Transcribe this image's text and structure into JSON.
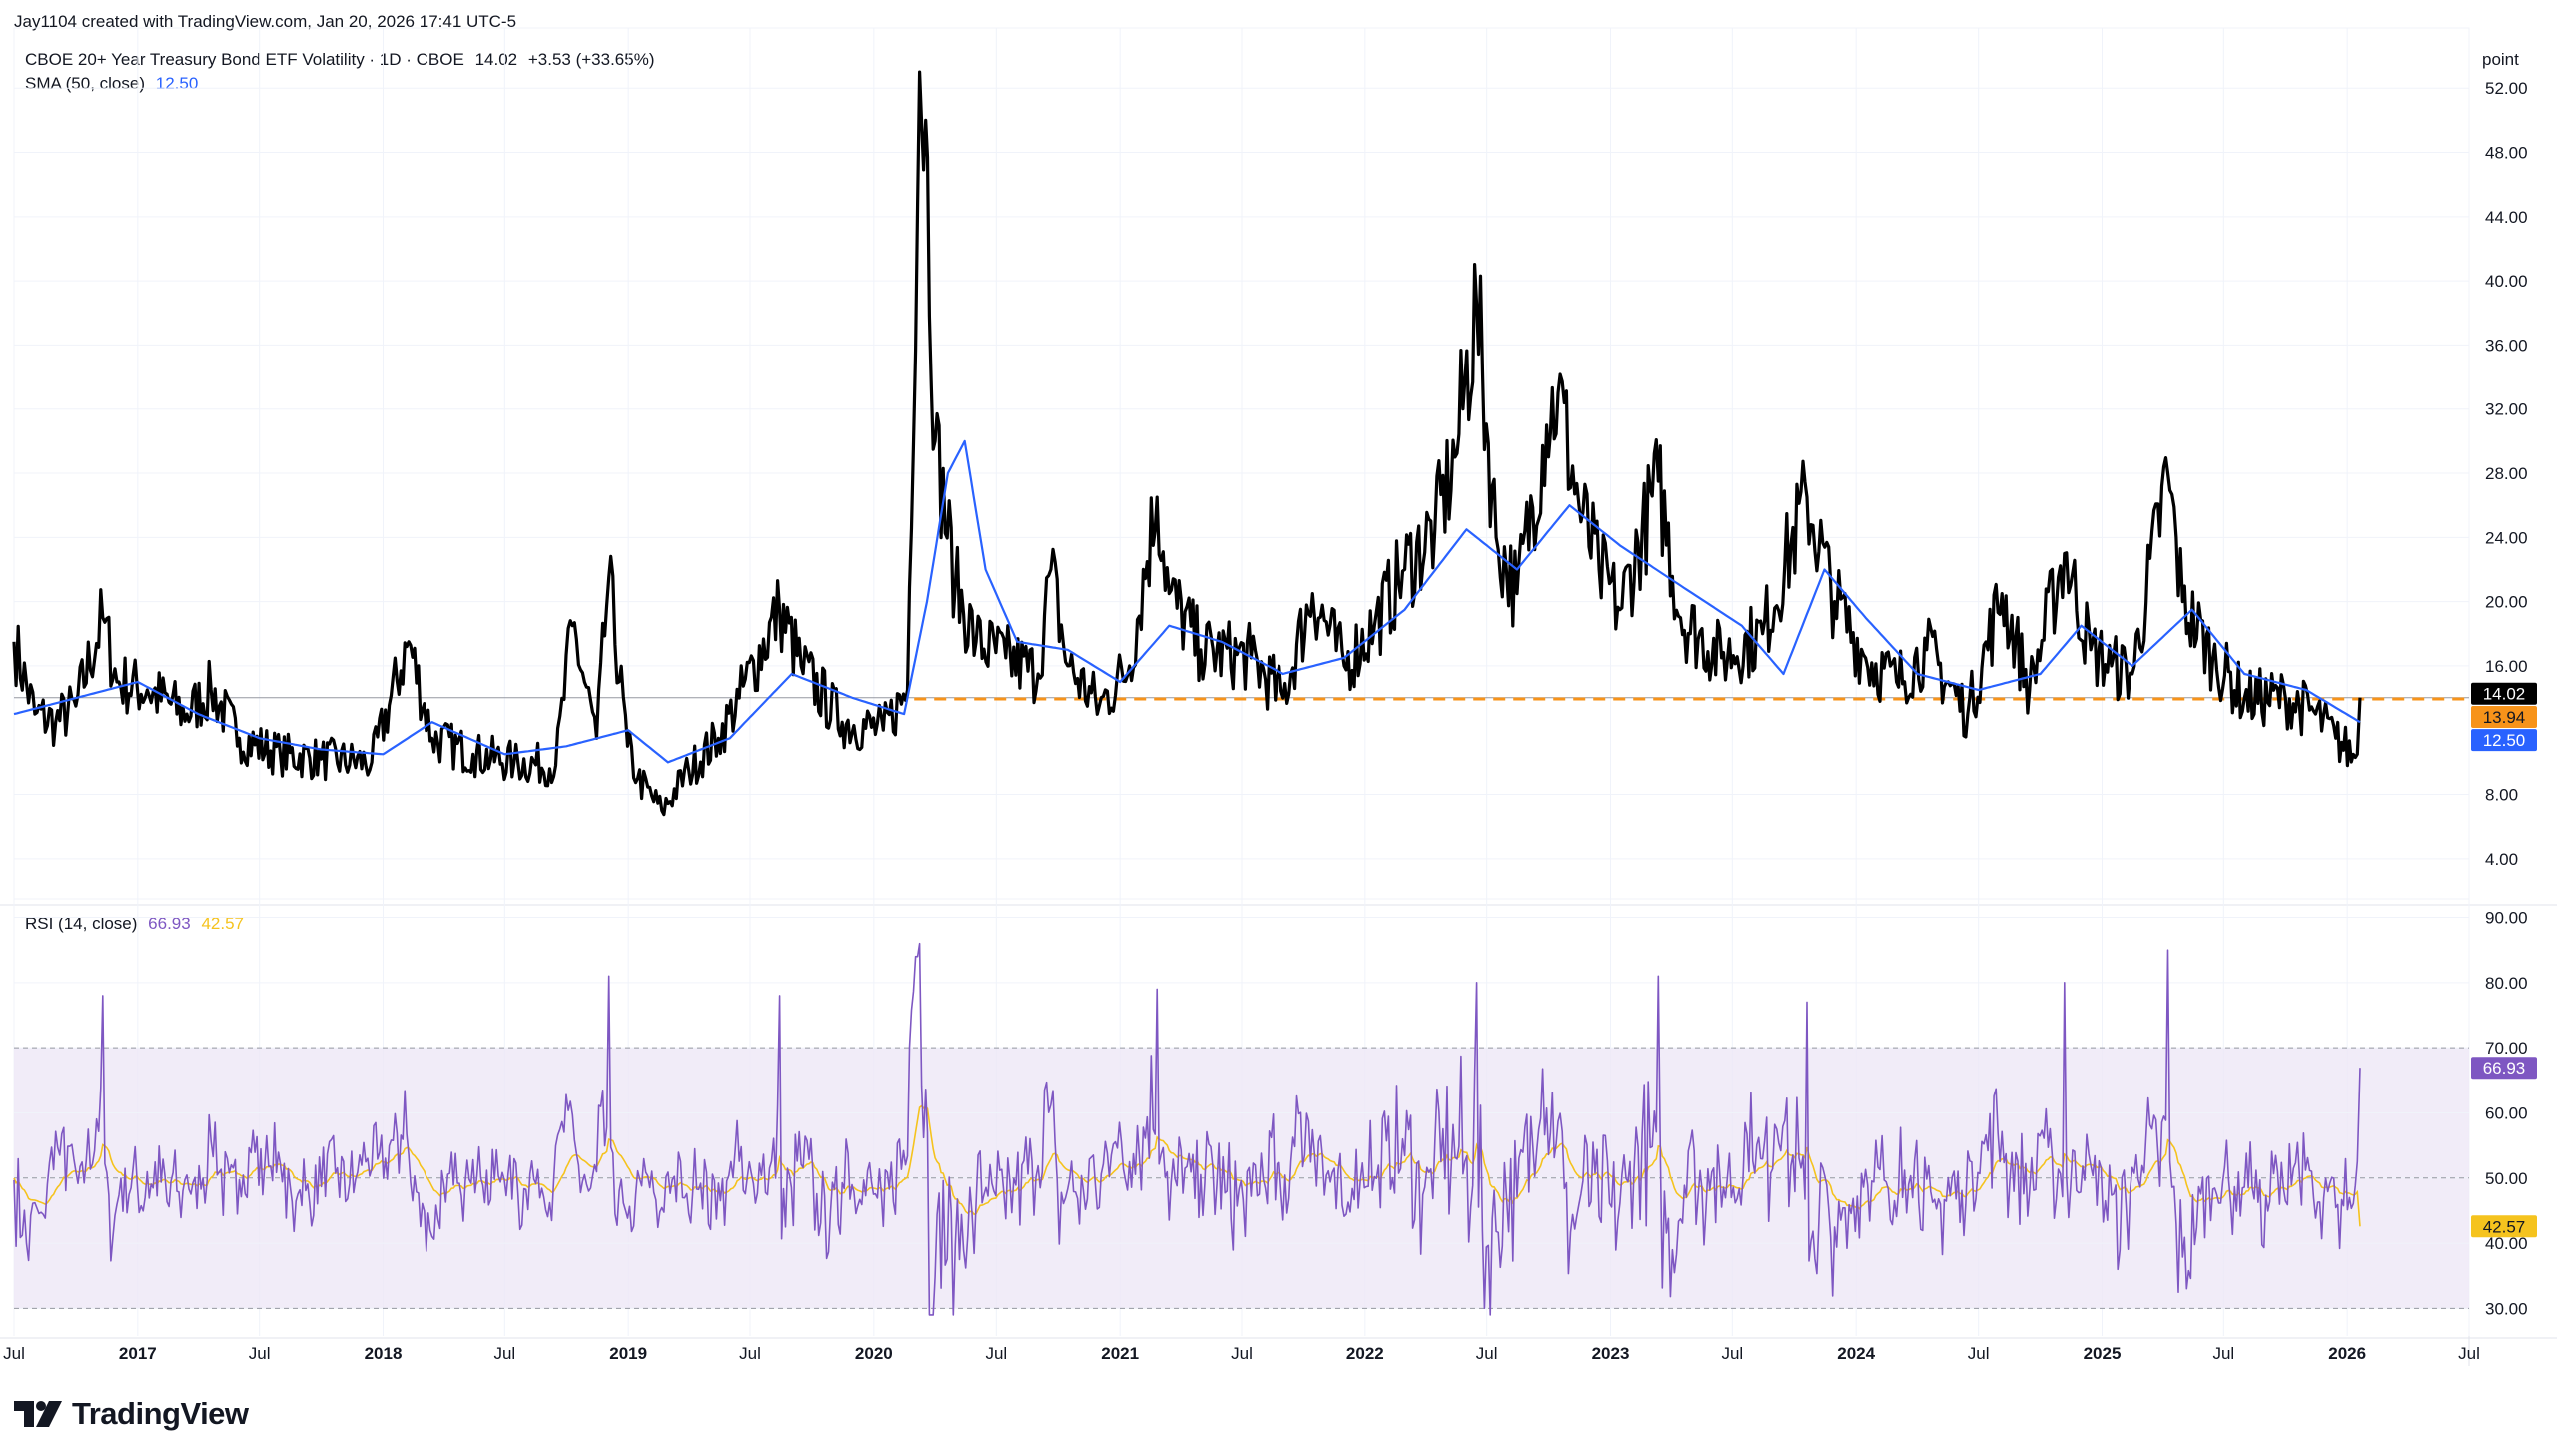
{
  "header": {
    "created_by": "Jay1104 created with TradingView.com, Jan 20, 2026 17:41 UTC-5",
    "symbol_line": "CBOE 20+ Year Treasury Bond ETF Volatility · 1D · CBOE",
    "last": "14.02",
    "change": "+3.53 (+33.65%)",
    "sma_label": "SMA (50, close)",
    "sma_value": "12.50",
    "rsi_label": "RSI (14, close)",
    "rsi_value": "66.93",
    "rsi_ma_value": "42.57",
    "unit_label": "point"
  },
  "brand": {
    "logo_text": "TradingView"
  },
  "colors": {
    "price": "#000000",
    "sma": "#2962ff",
    "rsi": "#7e57c2",
    "rsi_ma": "#f5c31e",
    "rsi_band": "#ede7f6",
    "ref_line": "#f7931a",
    "last_badge": "#000000",
    "ref_badge": "#f7931a",
    "sma_badge": "#2962ff",
    "rsi_badge": "#7e57c2",
    "rsi_ma_badge": "#f5c31e"
  },
  "chart_data": [
    {
      "type": "line",
      "title": "CBOE 20+ Year Treasury Bond ETF Volatility · 1D · CBOE",
      "ylabel": "point",
      "y_ticks": [
        4,
        8,
        16,
        20,
        24,
        28,
        32,
        36,
        40,
        44,
        48,
        52
      ],
      "ylim": [
        1.5,
        55
      ],
      "x_ticks": [
        "Jul",
        "2017",
        "Jul",
        "2018",
        "Jul",
        "2019",
        "Jul",
        "2020",
        "Jul",
        "2021",
        "Jul",
        "2022",
        "Jul",
        "2023",
        "Jul",
        "2024",
        "Jul",
        "2025",
        "Jul",
        "2026",
        "Jul"
      ],
      "series": [
        {
          "name": "CBOE 20+ Year Treasury Bond ETF Volatility",
          "points": [
            [
              "2016-07-01",
              17.5
            ],
            [
              "2016-08-01",
              13.0
            ],
            [
              "2016-09-01",
              12.5
            ],
            [
              "2016-10-01",
              13.5
            ],
            [
              "2016-11-10",
              19.0
            ],
            [
              "2016-12-01",
              15.0
            ],
            [
              "2017-01-15",
              14.5
            ],
            [
              "2017-03-15",
              13.0
            ],
            [
              "2017-04-20",
              14.5
            ],
            [
              "2017-06-01",
              11.5
            ],
            [
              "2017-08-01",
              10.5
            ],
            [
              "2017-10-01",
              10.2
            ],
            [
              "2017-12-15",
              10.0
            ],
            [
              "2018-02-08",
              17.5
            ],
            [
              "2018-03-15",
              11.5
            ],
            [
              "2018-05-15",
              10.5
            ],
            [
              "2018-07-15",
              10.0
            ],
            [
              "2018-09-15",
              9.8
            ],
            [
              "2018-10-10",
              18.5
            ],
            [
              "2018-11-15",
              11.5
            ],
            [
              "2018-12-03",
              21.5
            ],
            [
              "2018-12-31",
              11.0
            ],
            [
              "2019-01-15",
              9.0
            ],
            [
              "2019-02-20",
              7.0
            ],
            [
              "2019-04-01",
              9.5
            ],
            [
              "2019-05-15",
              11.5
            ],
            [
              "2019-06-15",
              14.0
            ],
            [
              "2019-08-14",
              19.5
            ],
            [
              "2019-09-15",
              16.0
            ],
            [
              "2019-11-15",
              12.5
            ],
            [
              "2020-01-15",
              12.0
            ],
            [
              "2020-02-20",
              14.5
            ],
            [
              "2020-03-09",
              53.0
            ],
            [
              "2020-03-18",
              50.0
            ],
            [
              "2020-04-01",
              30.0
            ],
            [
              "2020-05-01",
              21.0
            ],
            [
              "2020-06-01",
              17.5
            ],
            [
              "2020-07-15",
              16.5
            ],
            [
              "2020-09-01",
              15.5
            ],
            [
              "2020-09-20",
              22.0
            ],
            [
              "2020-10-15",
              16.0
            ],
            [
              "2020-12-01",
              13.5
            ],
            [
              "2021-01-15",
              16.0
            ],
            [
              "2021-02-25",
              26.5
            ],
            [
              "2021-03-15",
              20.5
            ],
            [
              "2021-05-01",
              17.0
            ],
            [
              "2021-07-15",
              16.5
            ],
            [
              "2021-09-01",
              14.0
            ],
            [
              "2021-10-15",
              20.5
            ],
            [
              "2021-12-01",
              16.0
            ],
            [
              "2022-01-15",
              18.5
            ],
            [
              "2022-03-01",
              22.0
            ],
            [
              "2022-04-15",
              24.5
            ],
            [
              "2022-05-15",
              29.0
            ],
            [
              "2022-06-16",
              38.5
            ],
            [
              "2022-07-15",
              24.0
            ],
            [
              "2022-08-15",
              20.5
            ],
            [
              "2022-09-28",
              31.0
            ],
            [
              "2022-10-15",
              33.0
            ],
            [
              "2022-11-15",
              26.0
            ],
            [
              "2022-12-15",
              22.0
            ],
            [
              "2023-01-15",
              19.5
            ],
            [
              "2023-03-13",
              27.5
            ],
            [
              "2023-04-15",
              19.0
            ],
            [
              "2023-06-15",
              16.5
            ],
            [
              "2023-08-15",
              18.0
            ],
            [
              "2023-10-20",
              26.5
            ],
            [
              "2023-11-30",
              20.0
            ],
            [
              "2024-01-15",
              16.5
            ],
            [
              "2024-03-01",
              15.0
            ],
            [
              "2024-04-15",
              17.0
            ],
            [
              "2024-06-15",
              13.0
            ],
            [
              "2024-08-05",
              20.5
            ],
            [
              "2024-09-15",
              14.5
            ],
            [
              "2024-11-06",
              23.0
            ],
            [
              "2024-12-15",
              17.0
            ],
            [
              "2025-01-15",
              16.0
            ],
            [
              "2025-02-15",
              15.5
            ],
            [
              "2025-04-09",
              28.0
            ],
            [
              "2025-05-01",
              20.0
            ],
            [
              "2025-06-15",
              16.5
            ],
            [
              "2025-08-01",
              14.0
            ],
            [
              "2025-10-01",
              14.0
            ],
            [
              "2025-11-15",
              13.0
            ],
            [
              "2025-12-15",
              11.5
            ],
            [
              "2026-01-13",
              10.3
            ],
            [
              "2026-01-16",
              10.5
            ],
            [
              "2026-01-20",
              14.02
            ]
          ]
        },
        {
          "name": "SMA (50, close)",
          "points": [
            [
              "2016-07-01",
              13.0
            ],
            [
              "2016-10-01",
              14.0
            ],
            [
              "2017-01-01",
              15.0
            ],
            [
              "2017-04-01",
              13.0
            ],
            [
              "2017-07-01",
              11.5
            ],
            [
              "2017-10-01",
              10.8
            ],
            [
              "2018-01-01",
              10.5
            ],
            [
              "2018-03-15",
              12.5
            ],
            [
              "2018-07-01",
              10.5
            ],
            [
              "2018-10-01",
              11.0
            ],
            [
              "2019-01-01",
              12.0
            ],
            [
              "2019-03-01",
              10.0
            ],
            [
              "2019-06-01",
              11.5
            ],
            [
              "2019-09-01",
              15.5
            ],
            [
              "2019-12-01",
              14.0
            ],
            [
              "2020-02-15",
              13.0
            ],
            [
              "2020-03-20",
              20.0
            ],
            [
              "2020-04-20",
              28.0
            ],
            [
              "2020-05-15",
              30.0
            ],
            [
              "2020-06-15",
              22.0
            ],
            [
              "2020-08-01",
              17.5
            ],
            [
              "2020-10-15",
              17.0
            ],
            [
              "2021-01-01",
              15.0
            ],
            [
              "2021-03-15",
              18.5
            ],
            [
              "2021-06-01",
              17.5
            ],
            [
              "2021-09-01",
              15.5
            ],
            [
              "2021-12-01",
              16.5
            ],
            [
              "2022-03-01",
              19.5
            ],
            [
              "2022-06-01",
              24.5
            ],
            [
              "2022-08-15",
              22.0
            ],
            [
              "2022-11-01",
              26.0
            ],
            [
              "2023-01-15",
              23.5
            ],
            [
              "2023-04-15",
              21.0
            ],
            [
              "2023-07-15",
              18.5
            ],
            [
              "2023-09-15",
              15.5
            ],
            [
              "2023-11-15",
              22.0
            ],
            [
              "2024-01-15",
              19.0
            ],
            [
              "2024-04-01",
              15.5
            ],
            [
              "2024-07-01",
              14.5
            ],
            [
              "2024-10-01",
              15.5
            ],
            [
              "2024-12-01",
              18.5
            ],
            [
              "2025-02-15",
              16.0
            ],
            [
              "2025-05-15",
              19.5
            ],
            [
              "2025-08-01",
              15.5
            ],
            [
              "2025-11-01",
              14.5
            ],
            [
              "2026-01-20",
              12.5
            ]
          ]
        }
      ],
      "reference_line": 13.94,
      "last_value": 14.02,
      "sma_last": 12.5
    },
    {
      "type": "line",
      "title": "RSI (14, close)",
      "y_ticks": [
        30,
        40,
        50,
        60,
        70,
        80,
        90
      ],
      "ylim": [
        27,
        91
      ],
      "bands": [
        30,
        50,
        70
      ],
      "series": [
        {
          "name": "RSI (14, close)",
          "last": 66.93,
          "peaks": [
            [
              "2020-03-09",
              86
            ],
            [
              "2025-04-09",
              85
            ],
            [
              "2016-11-10",
              78
            ],
            [
              "2018-12-03",
              81
            ],
            [
              "2022-06-16",
              80
            ],
            [
              "2023-03-13",
              81
            ],
            [
              "2024-11-06",
              80
            ],
            [
              "2021-02-25",
              79
            ],
            [
              "2019-08-14",
              78
            ],
            [
              "2023-10-20",
              77
            ]
          ]
        },
        {
          "name": "RSI-based MA",
          "last": 42.57
        }
      ]
    }
  ]
}
